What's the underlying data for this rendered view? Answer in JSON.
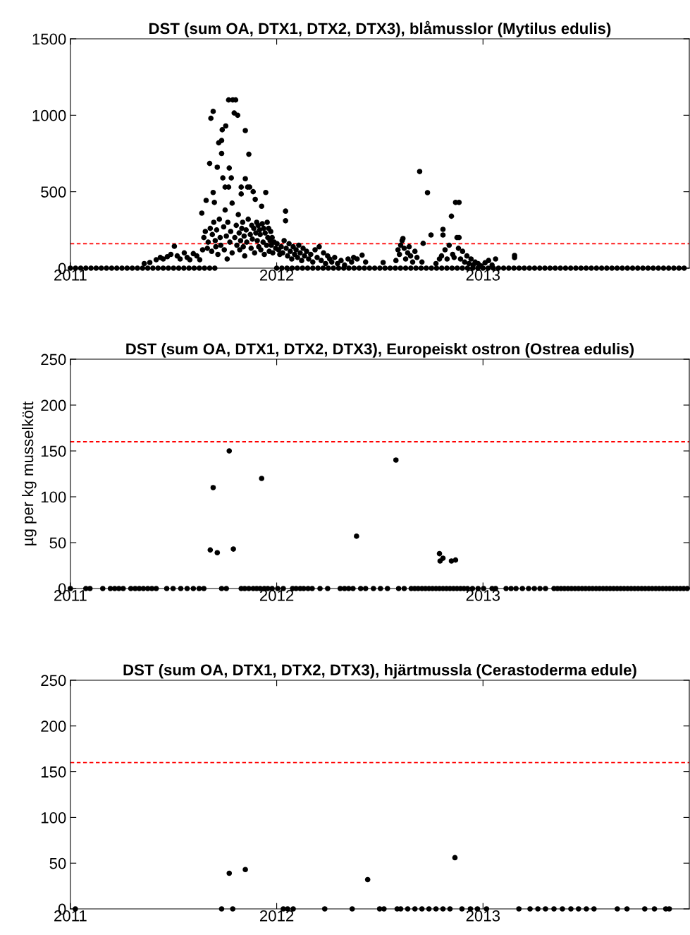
{
  "chart_data": [
    {
      "type": "scatter",
      "title": "DST (sum OA, DTX1, DTX2, DTX3), blåmusslor (Mytilus edulis)",
      "xlim": [
        2011,
        2014
      ],
      "xticks": [
        2011,
        2012,
        2013
      ],
      "ylim": [
        0,
        1500
      ],
      "yticks": [
        0,
        500,
        1000,
        1500
      ],
      "grid": false,
      "marker": "circle",
      "legend": false,
      "ref_lines": [
        {
          "axis": "y",
          "value": 160,
          "color": "#ff0000",
          "line_style": "dashed"
        }
      ],
      "series": [
        {
          "color": "#000000",
          "x": [
            2011.358,
            2011.385,
            2011.416,
            2011.436,
            2011.45,
            2011.47,
            2011.487,
            2011.504,
            2011.518,
            2011.532,
            2011.552,
            2011.566,
            2011.579,
            2011.596,
            2011.613,
            2011.627,
            2011.641,
            2011.637,
            2011.647,
            2011.654,
            2011.658,
            2011.664,
            2011.668,
            2011.675,
            2011.678,
            2011.681,
            2011.685,
            2011.688,
            2011.692,
            2011.692,
            2011.695,
            2011.698,
            2011.702,
            2011.705,
            2011.709,
            2011.712,
            2011.715,
            2011.719,
            2011.722,
            2011.726,
            2011.729,
            2011.733,
            2011.733,
            2011.736,
            2011.739,
            2011.743,
            2011.746,
            2011.75,
            2011.75,
            2011.753,
            2011.756,
            2011.76,
            2011.763,
            2011.767,
            2011.767,
            2011.77,
            2011.773,
            2011.777,
            2011.78,
            2011.784,
            2011.784,
            2011.787,
            2011.794,
            2011.797,
            2011.801,
            2011.804,
            2011.807,
            2011.811,
            2011.814,
            2011.818,
            2011.821,
            2011.825,
            2011.828,
            2011.828,
            2011.831,
            2011.835,
            2011.838,
            2011.842,
            2011.845,
            2011.848,
            2011.848,
            2011.852,
            2011.855,
            2011.859,
            2011.862,
            2011.865,
            2011.869,
            2011.872,
            2011.876,
            2011.879,
            2011.882,
            2011.886,
            2011.889,
            2011.893,
            2011.896,
            2011.899,
            2011.903,
            2011.906,
            2011.91,
            2011.913,
            2011.917,
            2011.92,
            2011.923,
            2011.927,
            2011.93,
            2011.934,
            2011.937,
            2011.94,
            2011.944,
            2011.947,
            2011.951,
            2011.954,
            2011.957,
            2011.961,
            2011.964,
            2011.968,
            2011.971,
            2011.974,
            2011.978,
            2011.981,
            2011.988,
            2011.995,
            2012.002,
            2012.009,
            2012.015,
            2012.022,
            2012.029,
            2012.036,
            2012.043,
            2012.043,
            2012.046,
            2012.053,
            2012.06,
            2012.066,
            2012.073,
            2012.08,
            2012.087,
            2012.094,
            2012.101,
            2012.107,
            2012.114,
            2012.121,
            2012.128,
            2012.135,
            2012.145,
            2012.155,
            2012.165,
            2012.175,
            2012.186,
            2012.196,
            2012.206,
            2012.216,
            2012.227,
            2012.237,
            2012.247,
            2012.257,
            2012.267,
            2012.281,
            2012.295,
            2012.312,
            2012.329,
            2012.346,
            2012.363,
            2012.373,
            2012.39,
            2012.414,
            2012.431,
            2012.516,
            2012.578,
            2012.588,
            2012.595,
            2012.601,
            2012.608,
            2012.612,
            2012.618,
            2012.625,
            2012.635,
            2012.642,
            2012.649,
            2012.659,
            2012.67,
            2012.68,
            2012.693,
            2012.704,
            2012.71,
            2012.731,
            2012.748,
            2012.772,
            2012.789,
            2012.799,
            2012.806,
            2012.806,
            2012.816,
            2012.826,
            2012.836,
            2012.847,
            2012.853,
            2012.86,
            2012.867,
            2012.874,
            2012.881,
            2012.884,
            2012.884,
            2012.891,
            2012.901,
            2012.911,
            2012.922,
            2012.932,
            2012.942,
            2012.952,
            2012.962,
            2012.976,
            2012.99,
            2013.01,
            2013.027,
            2013.044,
            2013.061,
            2013.153,
            2013.153,
            2011.0,
            2011.025,
            2011.05,
            2011.075,
            2011.1,
            2011.125,
            2011.15,
            2011.175,
            2011.2,
            2011.225,
            2011.25,
            2011.275,
            2011.3,
            2011.325,
            2011.35,
            2011.375,
            2011.4,
            2011.425,
            2011.45,
            2011.475,
            2011.5,
            2011.525,
            2011.55,
            2011.575,
            2011.6,
            2011.625,
            2011.65,
            2011.675,
            2011.7,
            2012.0,
            2012.025,
            2012.05,
            2012.075,
            2012.1,
            2012.125,
            2012.15,
            2012.175,
            2012.2,
            2012.225,
            2012.25,
            2012.275,
            2012.3,
            2012.325,
            2012.35,
            2012.375,
            2012.4,
            2012.425,
            2012.45,
            2012.475,
            2012.5,
            2012.525,
            2012.55,
            2012.575,
            2012.6,
            2012.625,
            2012.65,
            2012.675,
            2012.7,
            2012.725,
            2012.75,
            2012.775,
            2012.8,
            2012.825,
            2012.85,
            2012.875,
            2012.9,
            2012.925,
            2012.95,
            2012.975,
            2013.0,
            2013.025,
            2013.05,
            2013.075,
            2013.1,
            2013.125,
            2013.15,
            2013.175,
            2013.2,
            2013.225,
            2013.25,
            2013.275,
            2013.3,
            2013.325,
            2013.35,
            2013.375,
            2013.4,
            2013.425,
            2013.45,
            2013.475,
            2013.5,
            2013.525,
            2013.55,
            2013.575,
            2013.6,
            2013.625,
            2013.65,
            2013.675,
            2013.7,
            2013.725,
            2013.75,
            2013.775,
            2013.8,
            2013.825,
            2013.85,
            2013.875,
            2013.9,
            2013.925,
            2013.95,
            2013.975
          ],
          "values": [
            30,
            37,
            55,
            70,
            60,
            75,
            90,
            143,
            80,
            60,
            100,
            70,
            55,
            95,
            80,
            55,
            120,
            360,
            200,
            240,
            443,
            130,
            170,
            685,
            260,
            980,
            110,
            220,
            1025,
            495,
            300,
            430,
            180,
            140,
            250,
            660,
            90,
            820,
            320,
            200,
            150,
            835,
            750,
            905,
            590,
            270,
            120,
            530,
            380,
            930,
            210,
            60,
            300,
            1100,
            530,
            655,
            170,
            240,
            590,
            425,
            100,
            1100,
            1015,
            200,
            1100,
            280,
            150,
            1000,
            350,
            230,
            120,
            180,
            530,
            485,
            260,
            300,
            140,
            210,
            80,
            900,
            585,
            250,
            170,
            530,
            320,
            745,
            530,
            220,
            130,
            280,
            190,
            500,
            260,
            100,
            450,
            230,
            300,
            180,
            280,
            140,
            250,
            220,
            120,
            405,
            290,
            170,
            260,
            90,
            230,
            495,
            150,
            300,
            200,
            260,
            110,
            180,
            240,
            150,
            200,
            100,
            170,
            130,
            160,
            120,
            90,
            140,
            100,
            180,
            373,
            310,
            130,
            80,
            160,
            110,
            60,
            140,
            90,
            120,
            70,
            150,
            100,
            50,
            130,
            80,
            110,
            60,
            90,
            40,
            120,
            70,
            140,
            50,
            100,
            30,
            80,
            60,
            40,
            70,
            30,
            50,
            20,
            60,
            40,
            70,
            60,
            85,
            40,
            37,
            50,
            120,
            90,
            150,
            180,
            194,
            130,
            60,
            100,
            140,
            80,
            40,
            110,
            70,
            632,
            40,
            162,
            494,
            217,
            30,
            60,
            80,
            217,
            254,
            120,
            60,
            150,
            340,
            90,
            70,
            430,
            200,
            130,
            430,
            200,
            60,
            110,
            40,
            80,
            30,
            60,
            20,
            40,
            30,
            15,
            35,
            50,
            20,
            60,
            83,
            69,
            0,
            0,
            0,
            0,
            0,
            0,
            0,
            0,
            0,
            0,
            0,
            0,
            0,
            0,
            0,
            0,
            0,
            0,
            0,
            0,
            0,
            0,
            0,
            0,
            0,
            0,
            0,
            0,
            0,
            0,
            0,
            0,
            0,
            0,
            0,
            0,
            0,
            0,
            0,
            0,
            0,
            0,
            0,
            0,
            0,
            0,
            0,
            0,
            0,
            0,
            0,
            0,
            0,
            0,
            0,
            0,
            0,
            0,
            0,
            0,
            0,
            0,
            0,
            0,
            0,
            0,
            0,
            0,
            0,
            0,
            0,
            0,
            0,
            0,
            0,
            0,
            0,
            0,
            0,
            0,
            0,
            0,
            0,
            0,
            0,
            0,
            0,
            0,
            0,
            0,
            0,
            0,
            0,
            0,
            0,
            0,
            0,
            0,
            0,
            0,
            0,
            0,
            0,
            0,
            0,
            0,
            0,
            0,
            0
          ]
        }
      ]
    },
    {
      "type": "scatter",
      "title": "DST (sum OA, DTX1, DTX2, DTX3), Europeiskt ostron (Ostrea edulis)",
      "ylabel": "µg per kg musselkött",
      "xlim": [
        2011,
        2014
      ],
      "xticks": [
        2011,
        2012,
        2013
      ],
      "ylim": [
        0,
        250
      ],
      "yticks": [
        0,
        50,
        100,
        150,
        200,
        250
      ],
      "grid": false,
      "marker": "circle",
      "legend": false,
      "ref_lines": [
        {
          "axis": "y",
          "value": 160,
          "color": "#ff0000",
          "line_style": "dashed"
        }
      ],
      "series": [
        {
          "color": "#000000",
          "x": [
            2011.678,
            2011.692,
            2011.712,
            2011.77,
            2011.79,
            2011.927,
            2012.387,
            2012.578,
            2012.789,
            2012.792,
            2012.806,
            2012.847,
            2012.867,
            2011.0,
            2011.075,
            2011.095,
            2011.157,
            2011.194,
            2011.215,
            2011.235,
            2011.256,
            2011.293,
            2011.314,
            2011.334,
            2011.354,
            2011.375,
            2011.395,
            2011.416,
            2011.467,
            2011.498,
            2011.535,
            2011.566,
            2011.596,
            2011.624,
            2011.647,
            2011.733,
            2011.756,
            2011.828,
            2011.845,
            2011.865,
            2011.886,
            2011.903,
            2011.92,
            2011.94,
            2011.957,
            2011.978,
            2012.005,
            2012.032,
            2012.077,
            2012.094,
            2012.114,
            2012.131,
            2012.152,
            2012.172,
            2012.21,
            2012.247,
            2012.308,
            2012.329,
            2012.349,
            2012.37,
            2012.407,
            2012.431,
            2012.469,
            2012.503,
            2012.537,
            2012.591,
            2012.618,
            2012.652,
            2012.669,
            2012.686,
            2012.704,
            2012.721,
            2012.738,
            2012.755,
            2012.772,
            2012.789,
            2012.806,
            2012.823,
            2012.84,
            2012.857,
            2012.874,
            2012.891,
            2012.908,
            2012.925,
            2012.949,
            2012.976,
            2013.003,
            2013.044,
            2013.061,
            2013.112,
            2013.136,
            2013.16,
            2013.191,
            2013.221,
            2013.249,
            2013.276,
            2013.303,
            2013.344,
            2013.361,
            2013.378,
            2013.395,
            2013.412,
            2013.429,
            2013.446,
            2013.463,
            2013.48,
            2013.497,
            2013.514,
            2013.531,
            2013.548,
            2013.565,
            2013.582,
            2013.599,
            2013.616,
            2013.633,
            2013.65,
            2013.667,
            2013.684,
            2013.701,
            2013.718,
            2013.735,
            2013.752,
            2013.769,
            2013.786,
            2013.803,
            2013.82,
            2013.837,
            2013.854,
            2013.871,
            2013.888,
            2013.905,
            2013.922,
            2013.939,
            2013.956,
            2013.973,
            2013.99
          ],
          "values": [
            42,
            110,
            39,
            150,
            43,
            120,
            57,
            140,
            38,
            30,
            33,
            30,
            31,
            0,
            0,
            0,
            0,
            0,
            0,
            0,
            0,
            0,
            0,
            0,
            0,
            0,
            0,
            0,
            0,
            0,
            0,
            0,
            0,
            0,
            0,
            0,
            0,
            0,
            0,
            0,
            0,
            0,
            0,
            0,
            0,
            0,
            0,
            0,
            0,
            0,
            0,
            0,
            0,
            0,
            0,
            0,
            0,
            0,
            0,
            0,
            0,
            0,
            0,
            0,
            0,
            0,
            0,
            0,
            0,
            0,
            0,
            0,
            0,
            0,
            0,
            0,
            0,
            0,
            0,
            0,
            0,
            0,
            0,
            0,
            0,
            0,
            0,
            0,
            0,
            0,
            0,
            0,
            0,
            0,
            0,
            0,
            0,
            0,
            0,
            0,
            0,
            0,
            0,
            0,
            0,
            0,
            0,
            0,
            0,
            0,
            0,
            0,
            0,
            0,
            0,
            0,
            0,
            0,
            0,
            0,
            0,
            0,
            0,
            0,
            0,
            0,
            0,
            0,
            0,
            0,
            0,
            0,
            0,
            0,
            0,
            0
          ]
        }
      ]
    },
    {
      "type": "scatter",
      "title": "DST (sum OA, DTX1, DTX2, DTX3), hjärtmussla (Cerastoderma edule)",
      "xlim": [
        2011,
        2014
      ],
      "xticks": [
        2011,
        2012,
        2013
      ],
      "ylim": [
        0,
        250
      ],
      "yticks": [
        0,
        50,
        100,
        150,
        200,
        250
      ],
      "grid": false,
      "marker": "circle",
      "legend": false,
      "ref_lines": [
        {
          "axis": "y",
          "value": 160,
          "color": "#ff0000",
          "line_style": "dashed"
        }
      ],
      "series": [
        {
          "color": "#000000",
          "x": [
            2011.77,
            2011.848,
            2012.441,
            2012.864,
            2011.024,
            2011.733,
            2011.787,
            2012.032,
            2012.053,
            2012.08,
            2012.233,
            2012.366,
            2012.499,
            2012.52,
            2012.584,
            2012.601,
            2012.635,
            2012.67,
            2012.704,
            2012.738,
            2012.772,
            2012.806,
            2012.84,
            2012.898,
            2012.939,
            2012.973,
            2013.017,
            2013.174,
            2013.228,
            2013.266,
            2013.303,
            2013.344,
            2013.385,
            2013.426,
            2013.463,
            2013.501,
            2013.538,
            2013.651,
            2013.698,
            2013.784,
            2013.831,
            2013.886,
            2013.903
          ],
          "values": [
            39,
            43,
            32,
            56,
            0,
            0,
            0,
            0,
            0,
            0,
            0,
            0,
            0,
            0,
            0,
            0,
            0,
            0,
            0,
            0,
            0,
            0,
            0,
            0,
            0,
            0,
            0,
            0,
            0,
            0,
            0,
            0,
            0,
            0,
            0,
            0,
            0,
            0,
            0,
            0,
            0,
            0,
            0
          ]
        }
      ]
    }
  ]
}
